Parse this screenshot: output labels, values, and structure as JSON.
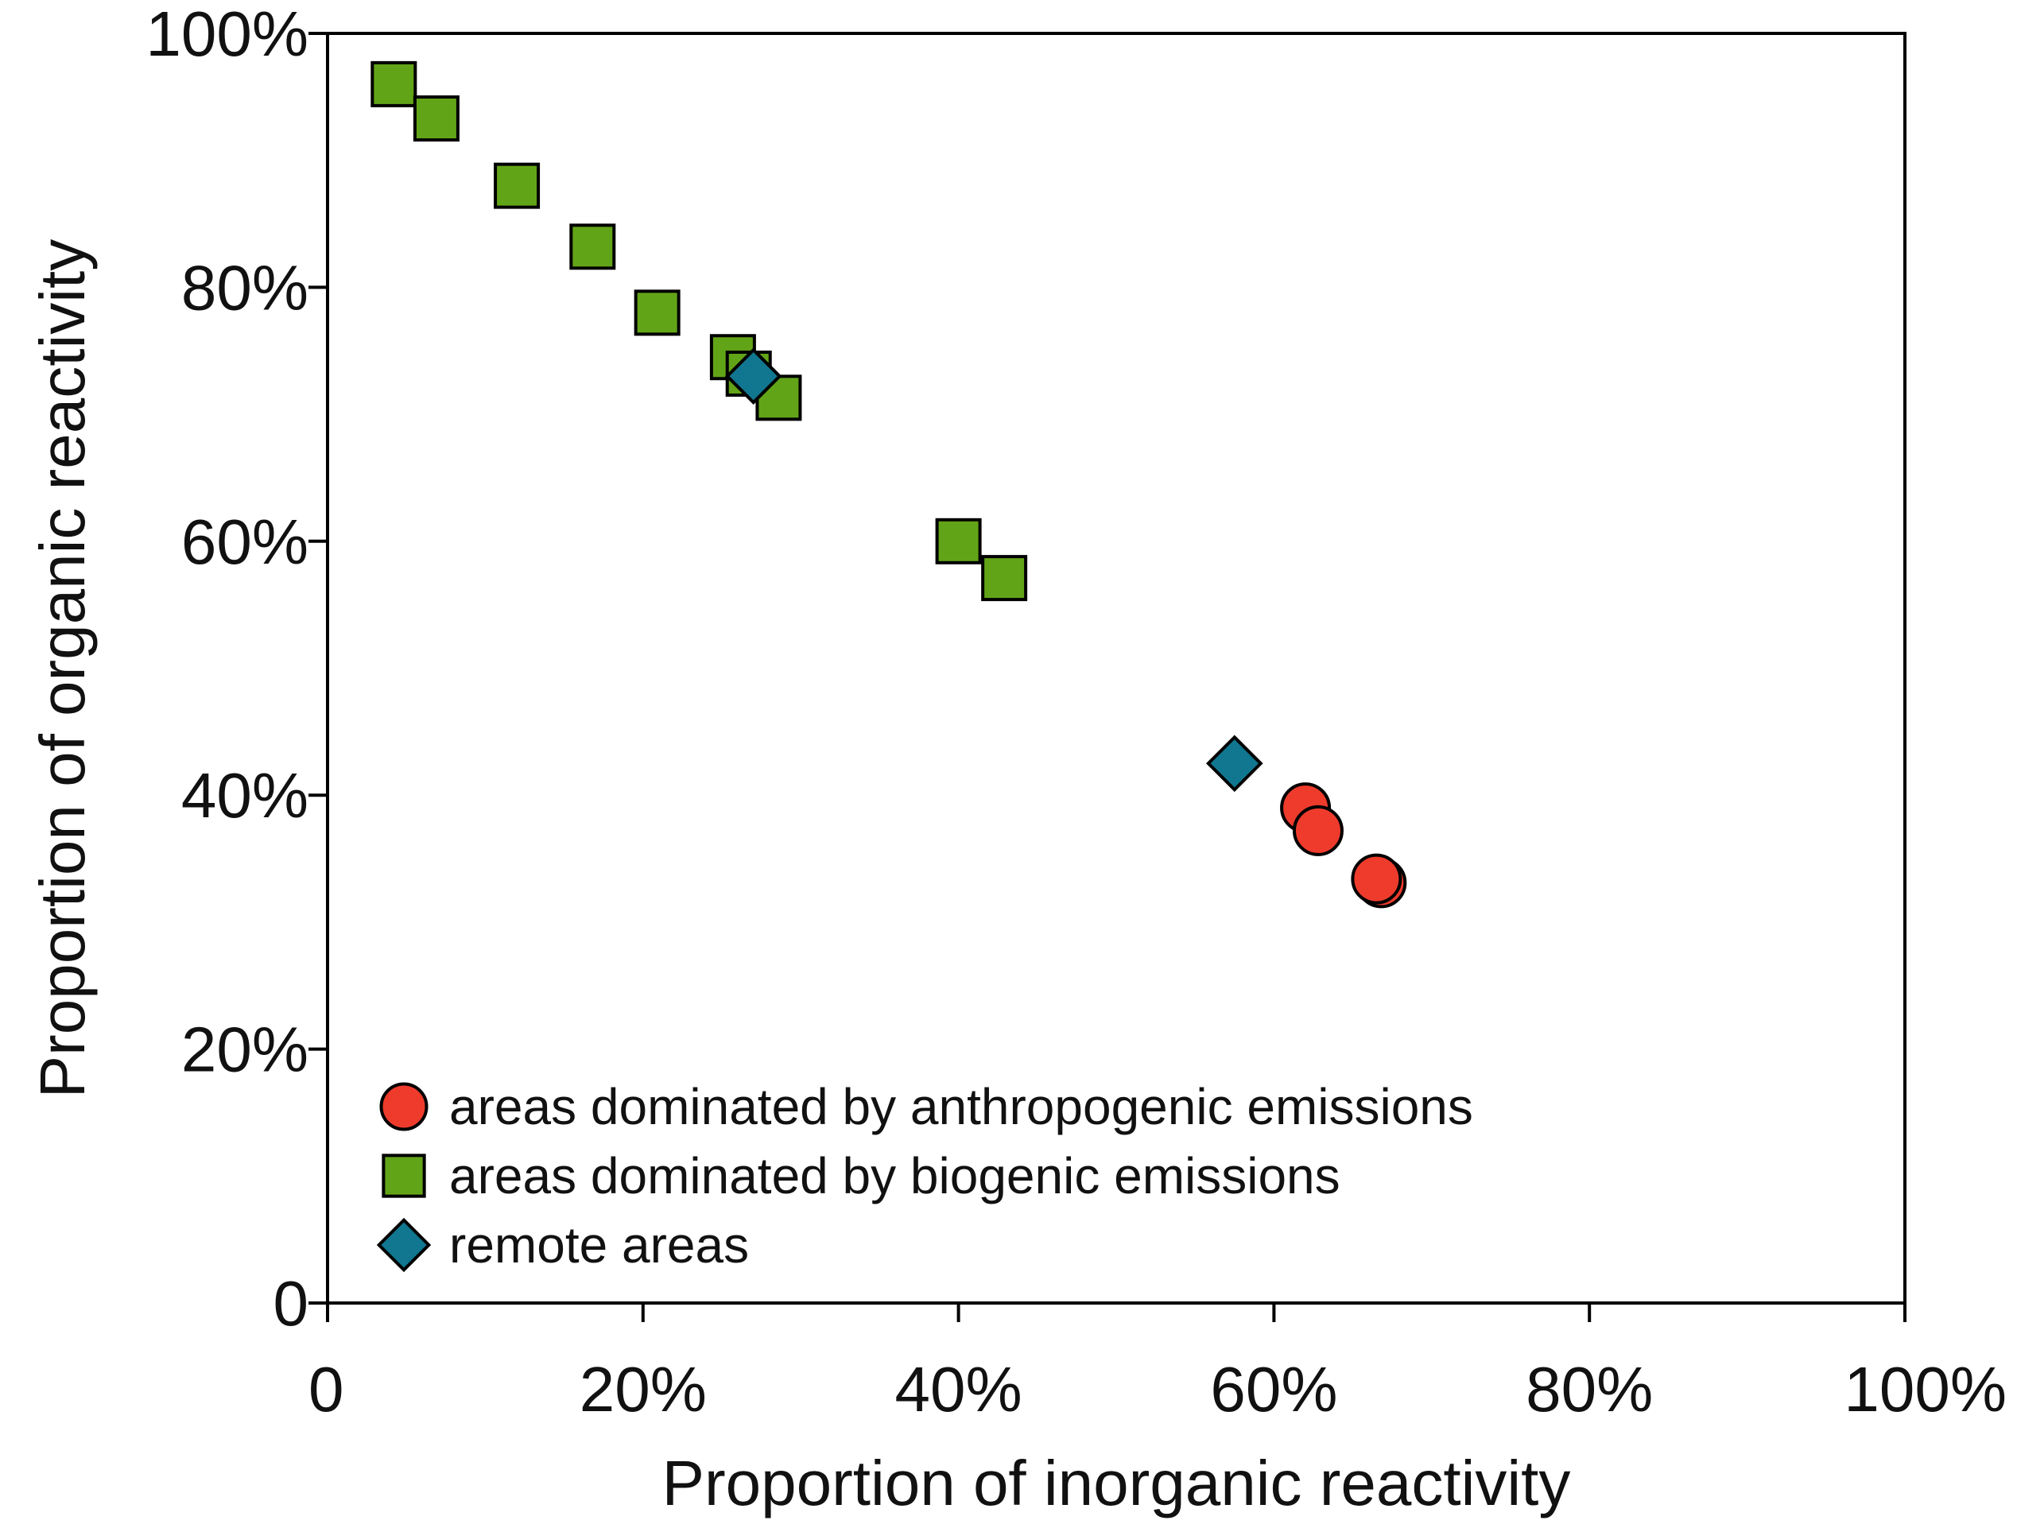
{
  "chart_data": {
    "type": "scatter",
    "title": "",
    "xlabel": "Proportion of inorganic reactivity",
    "ylabel": "Proportion of organic reactivity",
    "xlim": [
      0,
      100
    ],
    "ylim": [
      0,
      100
    ],
    "x_ticks": [
      0,
      20,
      40,
      60,
      80,
      100
    ],
    "y_ticks": [
      0,
      20,
      40,
      60,
      80,
      100
    ],
    "x_tick_labels": [
      "0",
      "20%",
      "40%",
      "60%",
      "80%",
      "100%"
    ],
    "y_tick_labels": [
      "0",
      "20%",
      "40%",
      "60%",
      "80%",
      "100%"
    ],
    "grid": false,
    "legend_position": "bottom-left",
    "series": [
      {
        "name": "areas dominated by anthropogenic emissions",
        "marker": "circle",
        "color": "#ee3b2c",
        "points": [
          {
            "x": 62.0,
            "y": 39.0
          },
          {
            "x": 62.8,
            "y": 37.2
          },
          {
            "x": 66.8,
            "y": 33.1
          },
          {
            "x": 66.5,
            "y": 33.4
          }
        ]
      },
      {
        "name": "areas dominated by biogenic emissions",
        "marker": "square",
        "color": "#62a418",
        "points": [
          {
            "x": 4.2,
            "y": 96.0
          },
          {
            "x": 6.9,
            "y": 93.3
          },
          {
            "x": 12.0,
            "y": 88.0
          },
          {
            "x": 16.8,
            "y": 83.2
          },
          {
            "x": 20.9,
            "y": 78.0
          },
          {
            "x": 25.7,
            "y": 74.5
          },
          {
            "x": 26.7,
            "y": 73.2
          },
          {
            "x": 28.6,
            "y": 71.3
          },
          {
            "x": 40.0,
            "y": 60.0
          },
          {
            "x": 42.9,
            "y": 57.1
          }
        ]
      },
      {
        "name": "remote areas",
        "marker": "diamond",
        "color": "#11768f",
        "points": [
          {
            "x": 27.0,
            "y": 73.0
          },
          {
            "x": 57.5,
            "y": 42.5
          }
        ]
      }
    ]
  }
}
